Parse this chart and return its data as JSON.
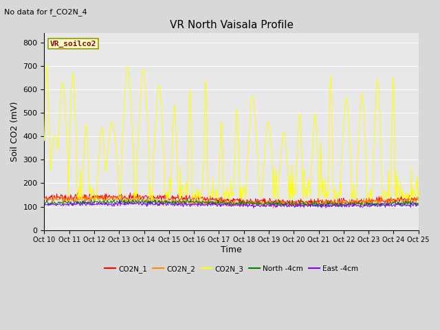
{
  "title": "VR North Vaisala Profile",
  "subtitle": "No data for f_CO2N_4",
  "ylabel": "Soil CO2 (mV)",
  "xlabel": "Time",
  "box_label": "VR_soilco2",
  "ylim": [
    0,
    840
  ],
  "yticks": [
    0,
    100,
    200,
    300,
    400,
    500,
    600,
    700,
    800
  ],
  "xtick_labels": [
    "Oct 10",
    "Oct 11",
    "Oct 12",
    "Oct 13",
    "Oct 14",
    "Oct 15",
    "Oct 16",
    "Oct 17",
    "Oct 18",
    "Oct 19",
    "Oct 20",
    "Oct 21",
    "Oct 22",
    "Oct 23",
    "Oct 24",
    "Oct 25"
  ],
  "legend_entries": [
    "CO2N_1",
    "CO2N_2",
    "CO2N_3",
    "North -4cm",
    "East -4cm"
  ],
  "legend_colors": [
    "#ff0000",
    "#ff8c00",
    "#ffff00",
    "#008000",
    "#8000ff"
  ],
  "fig_bg_color": "#d8d8d8",
  "plot_bg": "#e8e8e8",
  "grid_color": "#ffffff",
  "figsize": [
    6.4,
    4.8
  ],
  "dpi": 100
}
